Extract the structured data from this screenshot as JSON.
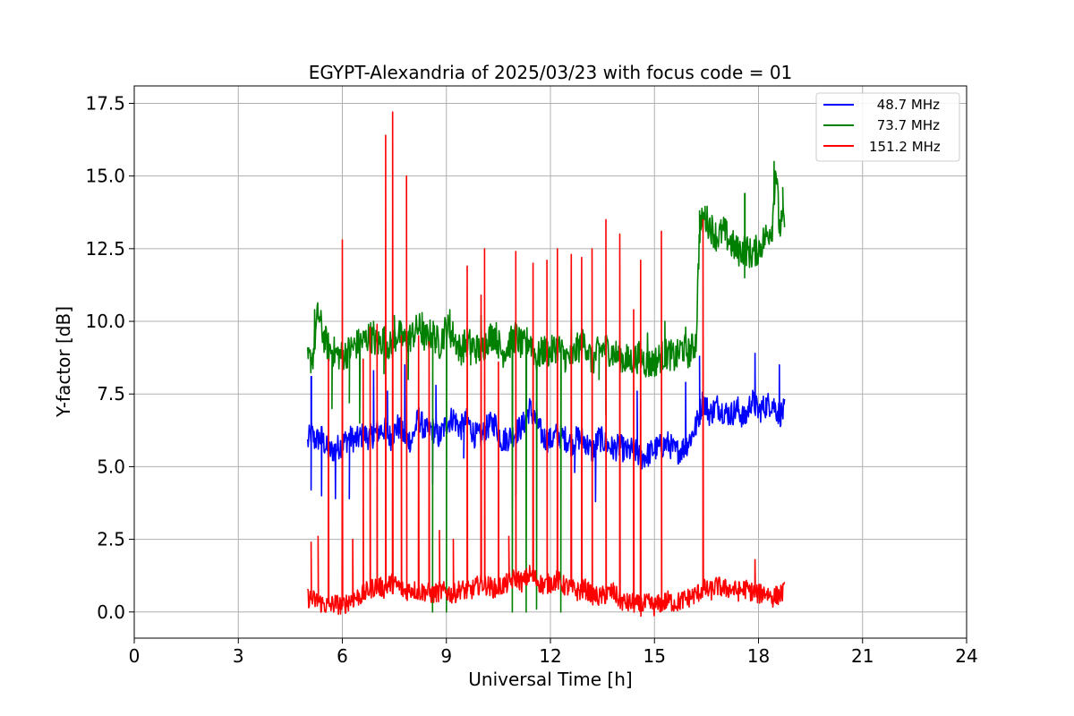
{
  "chart_data": {
    "type": "line",
    "title": "EGYPT-Alexandria of 2025/03/23 with focus code = 01",
    "xlabel": "Universal Time [h]",
    "ylabel": "Y-factor [dB]",
    "xlim": [
      0,
      24
    ],
    "ylim": [
      -0.9,
      18.1
    ],
    "xticks": [
      0,
      3,
      6,
      9,
      12,
      15,
      18,
      21,
      24
    ],
    "xtick_labels": [
      "0",
      "3",
      "6",
      "9",
      "12",
      "15",
      "18",
      "21",
      "24"
    ],
    "yticks": [
      0.0,
      2.5,
      5.0,
      7.5,
      10.0,
      12.5,
      15.0,
      17.5
    ],
    "ytick_labels": [
      "0.0",
      "2.5",
      "5.0",
      "7.5",
      "10.0",
      "12.5",
      "15.0",
      "17.5"
    ],
    "grid": true,
    "legend_position": "top-right",
    "series": [
      {
        "name": " 48.7 MHz",
        "color": "#0000ff",
        "x": [
          5.0,
          5.1,
          5.2,
          5.4,
          5.6,
          5.8,
          6.0,
          6.2,
          6.4,
          6.6,
          6.8,
          7.0,
          7.2,
          7.4,
          7.6,
          7.8,
          8.0,
          8.2,
          8.4,
          8.6,
          8.8,
          9.0,
          9.2,
          9.4,
          9.6,
          9.8,
          10.0,
          10.2,
          10.4,
          10.6,
          10.8,
          11.0,
          11.2,
          11.4,
          11.6,
          11.8,
          12.0,
          12.2,
          12.4,
          12.6,
          12.8,
          13.0,
          13.2,
          13.4,
          13.6,
          13.8,
          14.0,
          14.2,
          14.4,
          14.6,
          14.8,
          15.0,
          15.2,
          15.4,
          15.6,
          15.8,
          16.0,
          16.2,
          16.4,
          16.6,
          16.8,
          17.0,
          17.2,
          17.4,
          17.6,
          17.8,
          18.0,
          18.2,
          18.4,
          18.6,
          18.75
        ],
        "y": [
          5.8,
          6.2,
          5.9,
          6.0,
          5.5,
          5.6,
          5.8,
          6.0,
          5.9,
          6.1,
          6.0,
          6.2,
          6.3,
          6.0,
          6.4,
          6.0,
          5.9,
          6.7,
          6.2,
          6.3,
          6.0,
          6.5,
          6.7,
          6.3,
          6.6,
          6.1,
          6.0,
          6.4,
          6.5,
          5.9,
          6.0,
          6.2,
          6.4,
          7.0,
          6.5,
          6.0,
          5.9,
          6.1,
          6.0,
          5.8,
          6.0,
          5.9,
          5.5,
          6.0,
          5.8,
          5.6,
          5.7,
          5.5,
          5.6,
          5.3,
          5.4,
          5.6,
          5.7,
          5.8,
          5.5,
          5.6,
          5.9,
          6.4,
          7.3,
          6.8,
          7.1,
          6.9,
          6.8,
          7.0,
          6.6,
          7.3,
          6.9,
          7.1,
          7.2,
          6.8,
          6.9
        ],
        "spikes": [
          [
            5.1,
            8.1
          ],
          [
            5.1,
            4.2
          ],
          [
            5.4,
            4.0
          ],
          [
            5.8,
            3.9
          ],
          [
            6.2,
            3.9
          ],
          [
            6.9,
            8.3
          ],
          [
            7.3,
            7.6
          ],
          [
            7.8,
            8.5
          ],
          [
            8.6,
            4.4
          ],
          [
            8.7,
            7.8
          ],
          [
            9.5,
            5.3
          ],
          [
            11.0,
            4.0
          ],
          [
            11.6,
            7.2
          ],
          [
            12.7,
            4.8
          ],
          [
            13.0,
            5.5
          ],
          [
            13.3,
            3.8
          ],
          [
            14.5,
            7.6
          ],
          [
            15.9,
            7.9
          ],
          [
            16.3,
            8.8
          ],
          [
            17.9,
            8.9
          ],
          [
            18.6,
            8.5
          ]
        ]
      },
      {
        "name": " 73.7 MHz",
        "color": "#008000",
        "x": [
          5.0,
          5.15,
          5.3,
          5.45,
          5.6,
          5.8,
          6.0,
          6.2,
          6.4,
          6.6,
          6.8,
          7.0,
          7.2,
          7.4,
          7.6,
          7.8,
          8.0,
          8.2,
          8.4,
          8.6,
          8.8,
          9.0,
          9.2,
          9.4,
          9.6,
          9.8,
          10.0,
          10.2,
          10.4,
          10.6,
          10.8,
          11.0,
          11.2,
          11.4,
          11.6,
          11.8,
          12.0,
          12.2,
          12.4,
          12.6,
          12.8,
          13.0,
          13.2,
          13.4,
          13.6,
          13.8,
          14.0,
          14.2,
          14.4,
          14.6,
          14.8,
          15.0,
          15.2,
          15.4,
          15.6,
          15.8,
          16.0,
          16.2,
          16.3,
          16.45,
          16.6,
          16.8,
          17.0,
          17.2,
          17.4,
          17.6,
          17.8,
          18.0,
          18.2,
          18.4,
          18.5,
          18.6,
          18.75
        ],
        "y": [
          8.6,
          8.8,
          10.3,
          9.5,
          9.1,
          8.9,
          8.8,
          9.0,
          9.2,
          9.3,
          9.5,
          9.2,
          9.4,
          9.1,
          9.6,
          9.3,
          9.5,
          9.8,
          9.4,
          9.6,
          9.2,
          9.8,
          9.5,
          9.0,
          9.3,
          9.1,
          9.0,
          9.4,
          9.6,
          8.9,
          9.2,
          9.5,
          9.1,
          9.4,
          8.7,
          9.0,
          8.9,
          9.2,
          8.8,
          8.7,
          9.1,
          9.3,
          8.6,
          9.0,
          9.1,
          8.9,
          8.8,
          8.6,
          8.7,
          8.8,
          8.5,
          8.6,
          8.8,
          8.9,
          8.7,
          9.1,
          8.9,
          9.3,
          13.2,
          13.6,
          13.3,
          12.9,
          13.1,
          12.7,
          12.4,
          12.5,
          12.3,
          12.5,
          12.9,
          13.3,
          15.4,
          13.2,
          13.5
        ],
        "spikes": [
          [
            5.2,
            10.4
          ],
          [
            5.7,
            7.0
          ],
          [
            6.2,
            7.2
          ],
          [
            6.5,
            6.5
          ],
          [
            6.9,
            10.0
          ],
          [
            7.2,
            8.2
          ],
          [
            7.5,
            10.2
          ],
          [
            7.9,
            8.0
          ],
          [
            8.3,
            10.3
          ],
          [
            8.6,
            0.0
          ],
          [
            9.0,
            0.0
          ],
          [
            9.1,
            10.4
          ],
          [
            9.7,
            8.5
          ],
          [
            10.0,
            10.2
          ],
          [
            10.9,
            0.0
          ],
          [
            11.3,
            0.0
          ],
          [
            11.6,
            0.1
          ],
          [
            12.3,
            0.0
          ],
          [
            12.6,
            10.0
          ],
          [
            13.4,
            8.0
          ],
          [
            13.6,
            6.8
          ],
          [
            14.2,
            9.2
          ],
          [
            14.8,
            9.6
          ],
          [
            15.3,
            10.0
          ],
          [
            15.9,
            9.8
          ],
          [
            16.3,
            13.8
          ],
          [
            17.6,
            14.4
          ],
          [
            17.6,
            11.5
          ],
          [
            18.45,
            15.5
          ],
          [
            18.7,
            14.6
          ]
        ]
      },
      {
        "name": "151.2 MHz",
        "color": "#ff0000",
        "x": [
          5.0,
          5.2,
          5.4,
          5.6,
          5.8,
          6.0,
          6.2,
          6.4,
          6.6,
          6.8,
          7.0,
          7.2,
          7.4,
          7.6,
          7.8,
          8.0,
          8.2,
          8.4,
          8.6,
          8.8,
          9.0,
          9.2,
          9.4,
          9.6,
          9.8,
          10.0,
          10.2,
          10.4,
          10.6,
          10.8,
          11.0,
          11.2,
          11.4,
          11.6,
          11.8,
          12.0,
          12.2,
          12.4,
          12.6,
          12.8,
          13.0,
          13.2,
          13.4,
          13.6,
          13.8,
          14.0,
          14.2,
          14.4,
          14.6,
          14.8,
          15.0,
          15.2,
          15.4,
          15.6,
          15.8,
          16.0,
          16.2,
          16.4,
          16.6,
          16.8,
          17.0,
          17.2,
          17.4,
          17.6,
          17.8,
          18.0,
          18.2,
          18.4,
          18.6,
          18.75
        ],
        "y": [
          0.5,
          0.4,
          0.3,
          0.2,
          0.3,
          0.2,
          0.4,
          0.5,
          0.6,
          0.8,
          0.9,
          0.8,
          1.0,
          0.9,
          0.7,
          0.8,
          0.7,
          0.7,
          0.6,
          0.7,
          0.7,
          0.6,
          0.8,
          0.7,
          0.8,
          1.0,
          0.9,
          0.8,
          0.9,
          1.0,
          1.2,
          1.0,
          1.3,
          1.1,
          0.9,
          1.0,
          1.1,
          0.9,
          0.8,
          0.7,
          0.8,
          0.6,
          0.5,
          0.6,
          0.7,
          0.4,
          0.3,
          0.3,
          0.2,
          0.3,
          0.2,
          0.3,
          0.4,
          0.3,
          0.4,
          0.5,
          0.6,
          0.8,
          0.7,
          0.9,
          0.8,
          0.8,
          0.7,
          0.8,
          0.7,
          0.6,
          0.7,
          0.5,
          0.6,
          0.7
        ],
        "spikes": [
          [
            5.1,
            2.4
          ],
          [
            5.3,
            2.6
          ],
          [
            5.6,
            8.7
          ],
          [
            6.0,
            12.8
          ],
          [
            6.3,
            2.5
          ],
          [
            6.6,
            8.7
          ],
          [
            6.8,
            9.8
          ],
          [
            7.0,
            9.9
          ],
          [
            7.25,
            16.4
          ],
          [
            7.45,
            17.2
          ],
          [
            7.7,
            9.5
          ],
          [
            7.85,
            15.0
          ],
          [
            8.2,
            9.5
          ],
          [
            8.5,
            9.3
          ],
          [
            9.6,
            11.9
          ],
          [
            10.0,
            10.9
          ],
          [
            10.1,
            12.5
          ],
          [
            10.5,
            8.6
          ],
          [
            10.8,
            2.6
          ],
          [
            11.0,
            12.4
          ],
          [
            11.5,
            12.0
          ],
          [
            11.9,
            12.1
          ],
          [
            12.2,
            12.5
          ],
          [
            12.6,
            12.3
          ],
          [
            12.9,
            12.2
          ],
          [
            13.2,
            12.5
          ],
          [
            13.6,
            13.5
          ],
          [
            14.0,
            13.0
          ],
          [
            14.4,
            10.4
          ],
          [
            14.6,
            12.1
          ],
          [
            15.2,
            13.1
          ],
          [
            16.4,
            13.5
          ],
          [
            17.9,
            1.8
          ],
          [
            8.8,
            2.8
          ],
          [
            9.2,
            2.5
          ]
        ]
      }
    ]
  }
}
